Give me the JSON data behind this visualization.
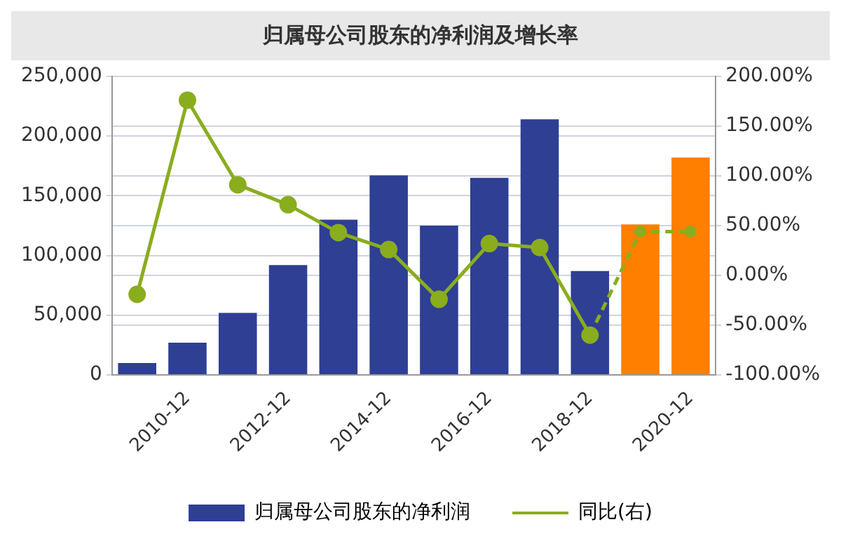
{
  "chart_data": {
    "type": "bar",
    "title": "归属母公司股东的净利润及增长率",
    "categories": [
      null,
      "2010-12",
      null,
      "2012-12",
      null,
      "2014-12",
      null,
      "2016-12",
      null,
      "2018-12",
      null,
      "2020-12"
    ],
    "series": [
      {
        "name": "归属母公司股东的净利润",
        "color": "#2e3f94",
        "colors": [
          "#2e3f94",
          "#2e3f94",
          "#2e3f94",
          "#2e3f94",
          "#2e3f94",
          "#2e3f94",
          "#2e3f94",
          "#2e3f94",
          "#2e3f94",
          "#2e3f94",
          "#ff7f00",
          "#ff7f00"
        ],
        "values": [
          10000,
          27000,
          52000,
          92000,
          130000,
          167000,
          125000,
          165000,
          214000,
          87000,
          126000,
          182000
        ]
      },
      {
        "name": "同比(右)",
        "type": "line",
        "axis": "y2",
        "color": "#8aad1e",
        "marker": "circle",
        "line_style": "solid",
        "values": [
          -19,
          176,
          91,
          71,
          43,
          26,
          -24,
          32,
          28,
          -60,
          null,
          null
        ]
      },
      {
        "type": "line",
        "axis": "y2",
        "color": "#8aad1e",
        "marker": "circle",
        "line_style": "dashed",
        "values": [
          null,
          null,
          null,
          null,
          null,
          null,
          null,
          null,
          null,
          -60,
          44,
          44
        ]
      }
    ],
    "ylim": [
      0,
      250000
    ],
    "yticks": [
      {
        "value": 0,
        "label": "0"
      },
      {
        "value": 50000,
        "label": "50,000"
      },
      {
        "value": 100000,
        "label": "100,000"
      },
      {
        "value": 150000,
        "label": "150,000"
      },
      {
        "value": 200000,
        "label": "200,000"
      },
      {
        "value": 250000,
        "label": "250,000"
      }
    ],
    "y2lim": [
      -100,
      200
    ],
    "y2ticks": [
      {
        "value": -100,
        "label": "-100.00%"
      },
      {
        "value": -50,
        "label": "-50.00%"
      },
      {
        "value": 0,
        "label": "0.00%"
      },
      {
        "value": 50,
        "label": "50.00%"
      },
      {
        "value": 100,
        "label": "100.00%"
      },
      {
        "value": 150,
        "label": "150.00%"
      },
      {
        "value": 200,
        "label": "200.00%"
      }
    ],
    "grid": "y",
    "legend": "bottom"
  }
}
